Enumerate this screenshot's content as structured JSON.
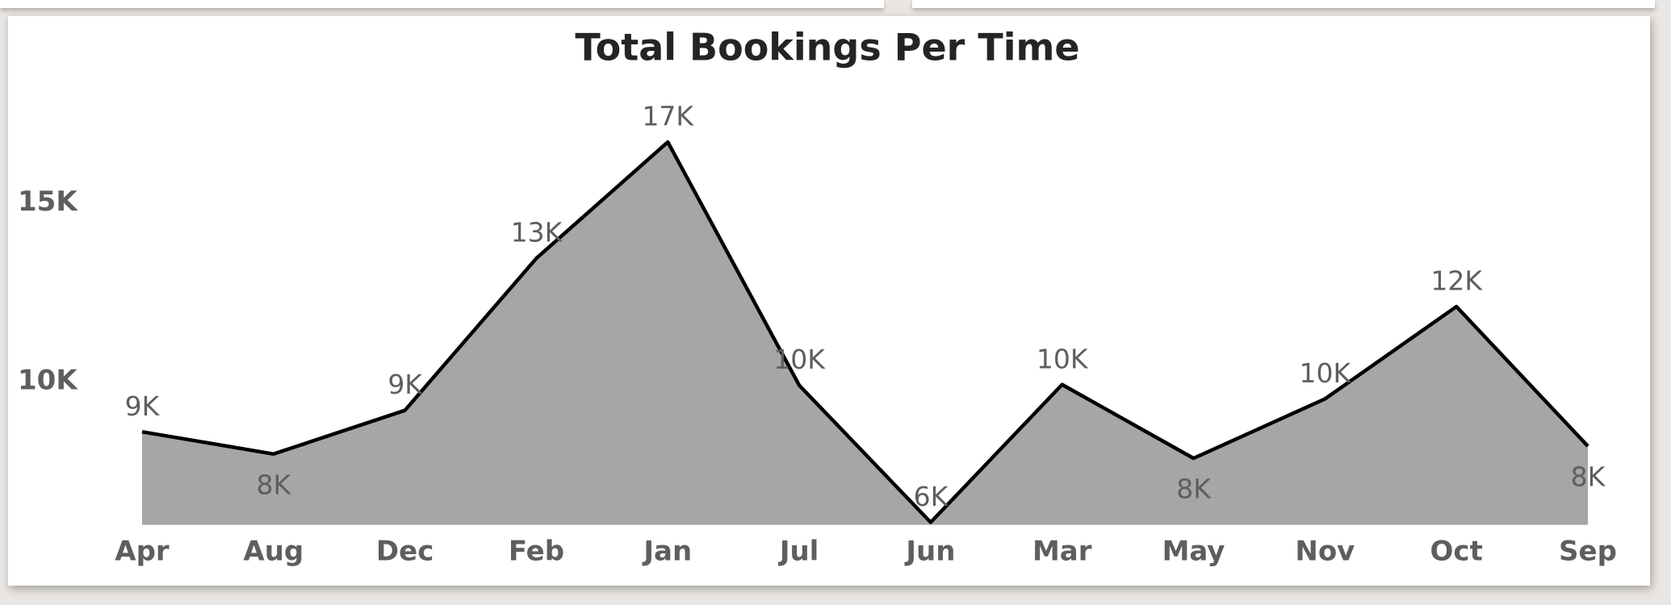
{
  "chart_data": {
    "type": "area",
    "title": "Total Bookings Per Time",
    "categories": [
      "Apr",
      "Aug",
      "Dec",
      "Feb",
      "Jan",
      "Jul",
      "Jun",
      "Mar",
      "May",
      "Nov",
      "Oct",
      "Sep"
    ],
    "values": [
      8600,
      7980,
      9200,
      13450,
      16700,
      9900,
      6070,
      9920,
      7860,
      9520,
      12100,
      8200
    ],
    "value_labels": [
      "9K",
      "8K",
      "9K",
      "13K",
      "17K",
      "10K",
      "6K",
      "10K",
      "8K",
      "10K",
      "12K",
      "8K"
    ],
    "color": "#a6a6a6",
    "line_color": "#000000",
    "ylim": [
      6000,
      17800
    ],
    "yticks": [
      {
        "value": 10000,
        "label": "10K"
      },
      {
        "value": 15000,
        "label": "15K"
      }
    ],
    "grid": false
  }
}
